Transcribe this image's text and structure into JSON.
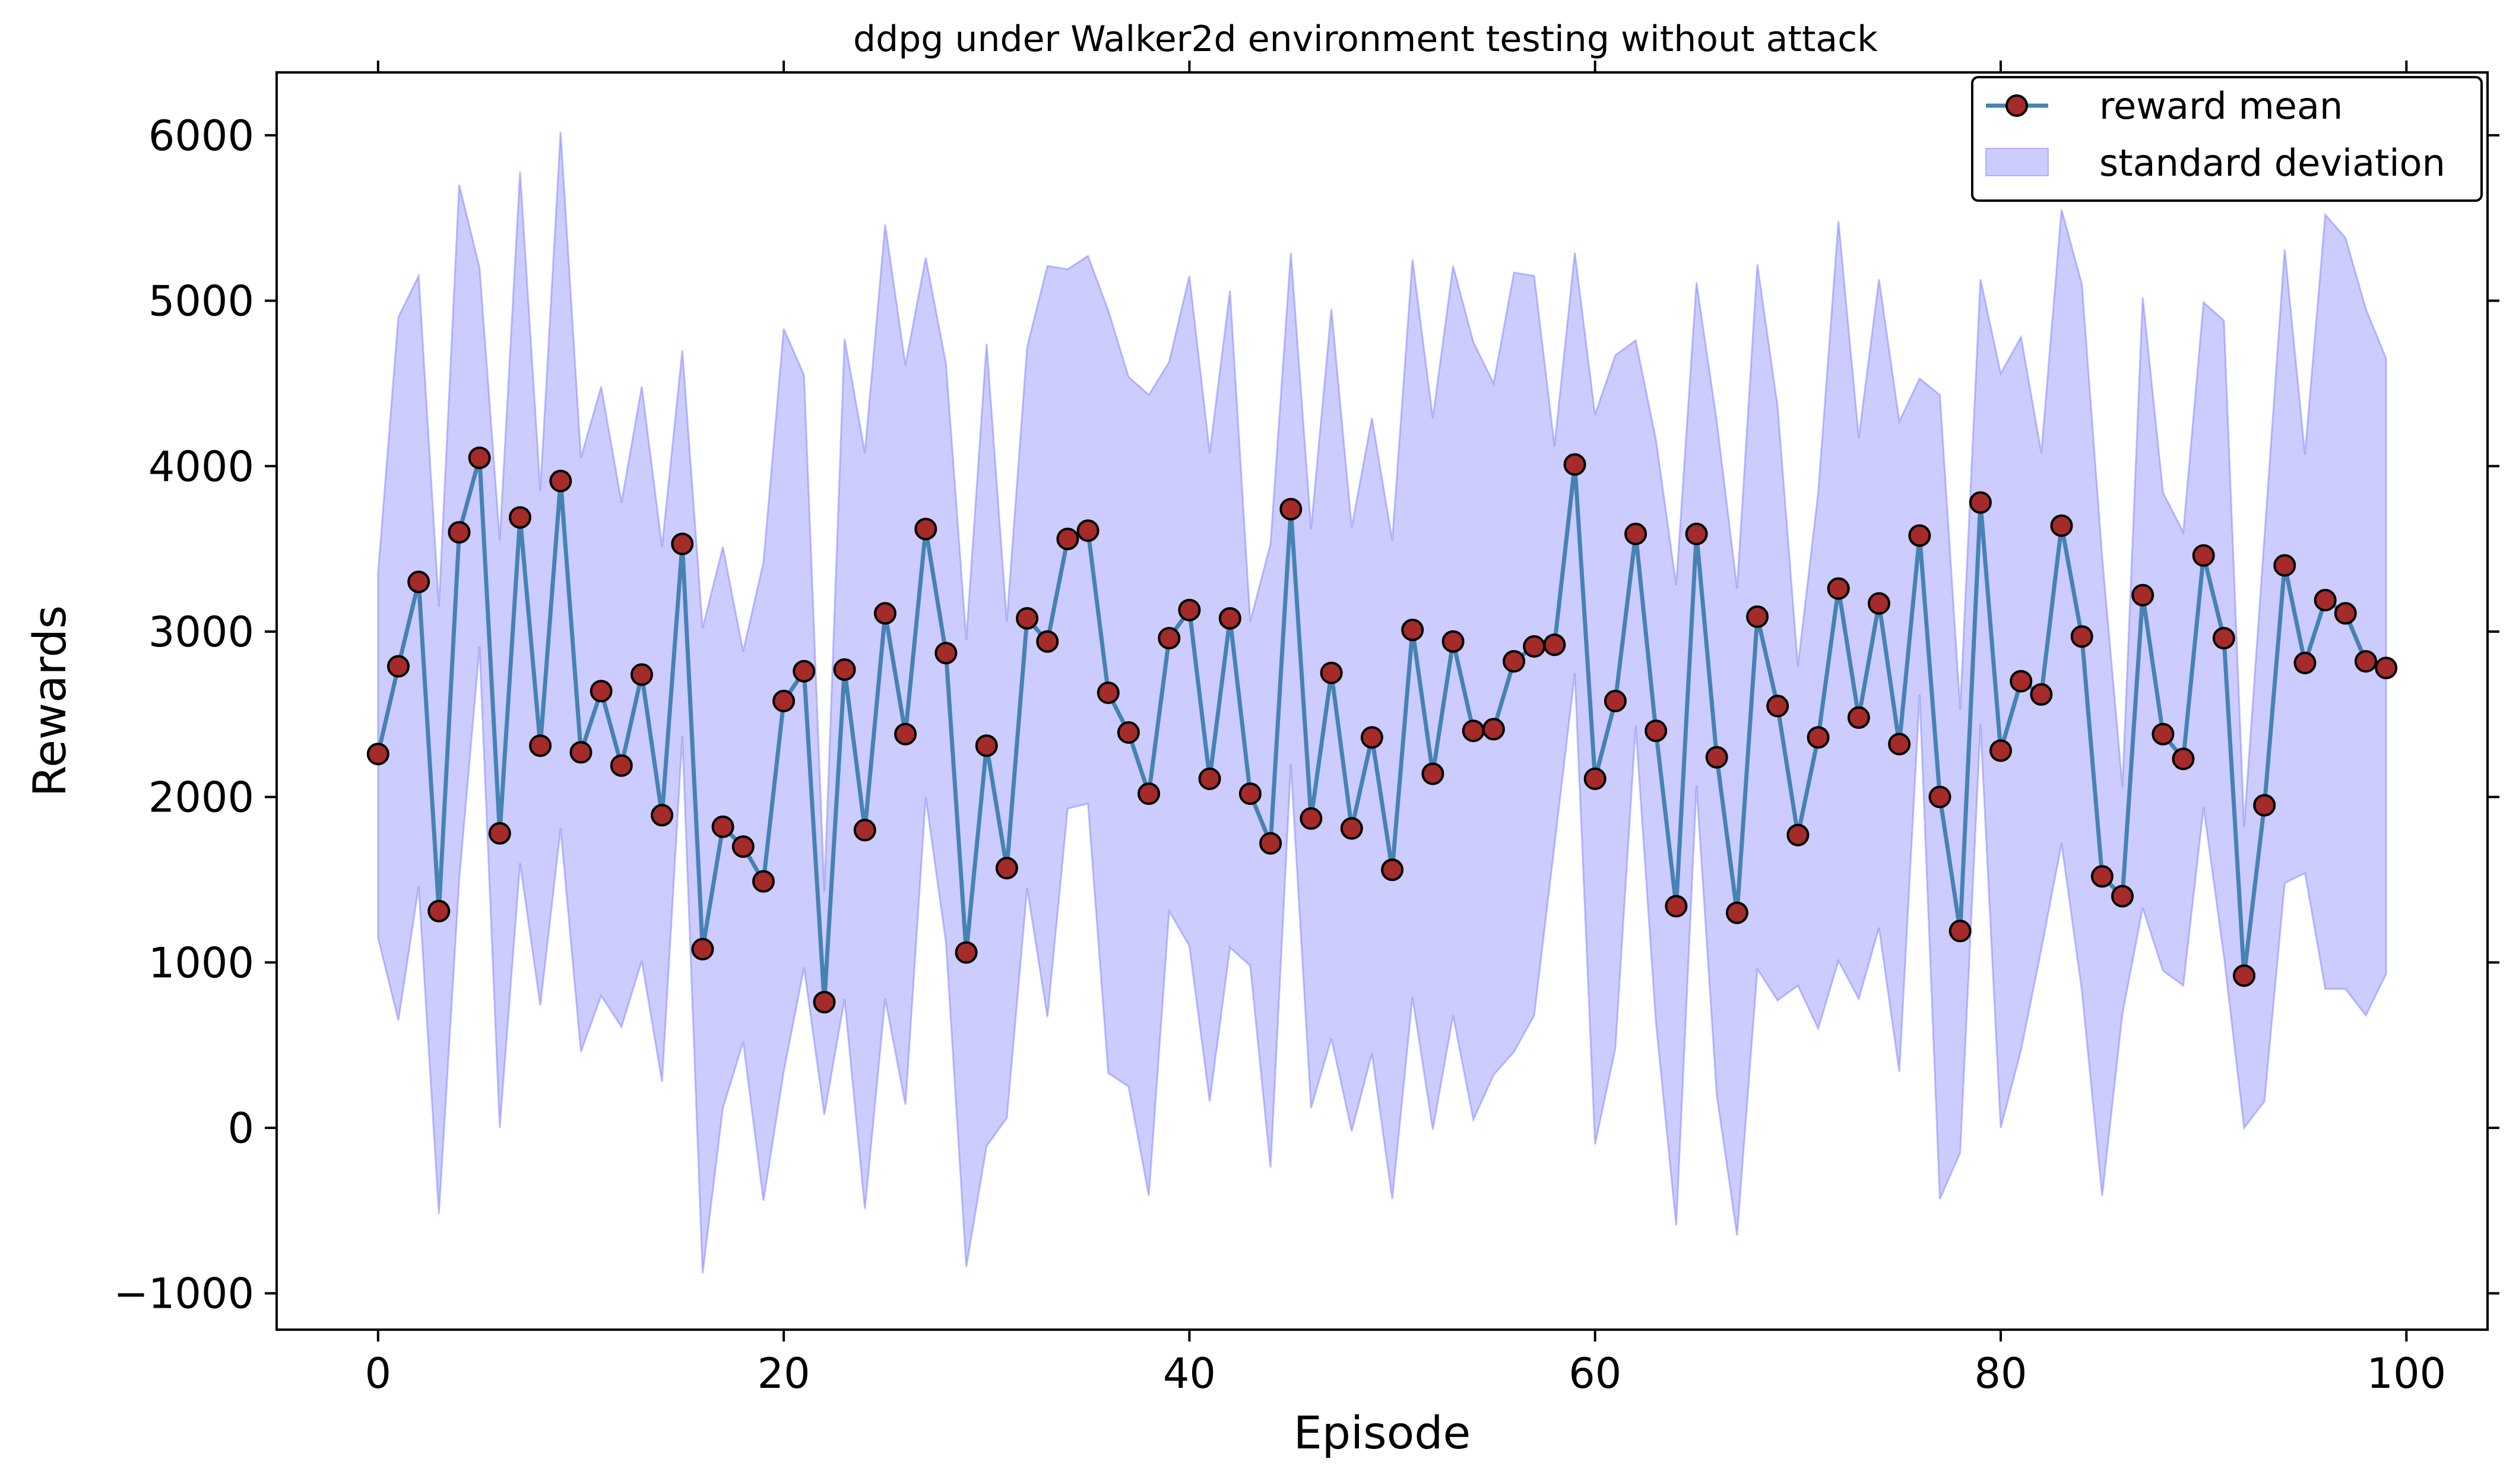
{
  "chart_data": {
    "type": "line",
    "title": "ddpg under Walker2d environment testing without attack",
    "xlabel": "Episode",
    "ylabel": "Rewards",
    "xlim": [
      -5,
      104
    ],
    "ylim": [
      -1220,
      6380
    ],
    "xticks": [
      0,
      20,
      40,
      60,
      80,
      100
    ],
    "yticks": [
      -1000,
      0,
      1000,
      2000,
      3000,
      4000,
      5000,
      6000
    ],
    "ytick_labels": [
      "−1000",
      "0",
      "1000",
      "2000",
      "3000",
      "4000",
      "5000",
      "6000"
    ],
    "grid": false,
    "legend_position": "top-right",
    "legend": [
      {
        "label": "reward mean",
        "kind": "line-marker"
      },
      {
        "label": "standard deviation",
        "kind": "patch"
      }
    ],
    "colors": {
      "line": "#4682b4",
      "marker_face": "#a52a2a",
      "marker_edge": "#000000",
      "band": "#8080ff"
    },
    "series": [
      {
        "name": "reward mean",
        "x": [
          0,
          1,
          2,
          3,
          4,
          5,
          6,
          7,
          8,
          9,
          10,
          11,
          12,
          13,
          14,
          15,
          16,
          17,
          18,
          19,
          20,
          21,
          22,
          23,
          24,
          25,
          26,
          27,
          28,
          29,
          30,
          31,
          32,
          33,
          34,
          35,
          36,
          37,
          38,
          39,
          40,
          41,
          42,
          43,
          44,
          45,
          46,
          47,
          48,
          49,
          50,
          51,
          52,
          53,
          54,
          55,
          56,
          57,
          58,
          59,
          60,
          61,
          62,
          63,
          64,
          65,
          66,
          67,
          68,
          69,
          70,
          71,
          72,
          73,
          74,
          75,
          76,
          77,
          78,
          79,
          80,
          81,
          82,
          83,
          84,
          85,
          86,
          87,
          88,
          89,
          90,
          91,
          92,
          93,
          94,
          95,
          96,
          97,
          98,
          99
        ],
        "values": [
          2260,
          2790,
          3300,
          1310,
          3600,
          4050,
          1780,
          3690,
          2310,
          3910,
          2270,
          2640,
          2190,
          2740,
          1890,
          3530,
          1080,
          1820,
          1700,
          1490,
          2580,
          2760,
          760,
          2770,
          1800,
          3110,
          2380,
          3620,
          2870,
          1060,
          2310,
          1570,
          3080,
          2940,
          3560,
          3610,
          2630,
          2390,
          2020,
          2960,
          3130,
          2110,
          3080,
          2020,
          1720,
          3740,
          1870,
          2750,
          1810,
          2360,
          1560,
          3010,
          2140,
          2940,
          2400,
          2410,
          2820,
          2910,
          2920,
          4010,
          2110,
          2580,
          3590,
          2400,
          1340,
          3590,
          2240,
          1300,
          3090,
          2550,
          1770,
          2360,
          3260,
          2480,
          3170,
          2320,
          3580,
          2000,
          1190,
          3780,
          2280,
          2700,
          2620,
          3640,
          2970,
          1520,
          1400,
          3220,
          2380,
          2230,
          3460,
          2960,
          920,
          1950,
          3400,
          2810,
          3190,
          3110,
          2820,
          2780
        ]
      },
      {
        "name": "standard deviation",
        "x": [
          0,
          1,
          2,
          3,
          4,
          5,
          6,
          7,
          8,
          9,
          10,
          11,
          12,
          13,
          14,
          15,
          16,
          17,
          18,
          19,
          20,
          21,
          22,
          23,
          24,
          25,
          26,
          27,
          28,
          29,
          30,
          31,
          32,
          33,
          34,
          35,
          36,
          37,
          38,
          39,
          40,
          41,
          42,
          43,
          44,
          45,
          46,
          47,
          48,
          49,
          50,
          51,
          52,
          53,
          54,
          55,
          56,
          57,
          58,
          59,
          60,
          61,
          62,
          63,
          64,
          65,
          66,
          67,
          68,
          69,
          70,
          71,
          72,
          73,
          74,
          75,
          76,
          77,
          78,
          79,
          80,
          81,
          82,
          83,
          84,
          85,
          86,
          87,
          88,
          89,
          90,
          91,
          92,
          93,
          94,
          95,
          96,
          97,
          98,
          99
        ],
        "upper": [
          3350,
          4900,
          5150,
          3150,
          5700,
          5200,
          3550,
          5780,
          3850,
          6020,
          4050,
          4480,
          3780,
          4480,
          3510,
          4700,
          3020,
          3510,
          2880,
          3420,
          4830,
          4550,
          1430,
          4770,
          4080,
          5460,
          4610,
          5260,
          4620,
          2950,
          4740,
          3060,
          4720,
          5210,
          5190,
          5270,
          4940,
          4540,
          4430,
          4630,
          5150,
          4080,
          5060,
          3060,
          3530,
          5290,
          3620,
          4950,
          3630,
          4290,
          3550,
          5250,
          4290,
          5210,
          4750,
          4500,
          5170,
          5150,
          4120,
          5290,
          4310,
          4670,
          4760,
          4160,
          3280,
          5110,
          4270,
          3260,
          5220,
          4360,
          2790,
          3840,
          5480,
          4170,
          5130,
          4270,
          4530,
          4430,
          2530,
          5130,
          4560,
          4780,
          4080,
          5550,
          5100,
          3450,
          2060,
          5020,
          3840,
          3600,
          4990,
          4880,
          1820,
          3570,
          5310,
          4070,
          5520,
          5380,
          4950,
          4650
        ],
        "lower": [
          1150,
          650,
          1460,
          -520,
          1500,
          2910,
          0,
          1600,
          740,
          1810,
          460,
          800,
          610,
          1010,
          280,
          2370,
          -880,
          120,
          520,
          -440,
          340,
          970,
          80,
          780,
          -490,
          780,
          140,
          2000,
          1120,
          -840,
          -110,
          60,
          1450,
          670,
          1930,
          1960,
          330,
          250,
          -410,
          1310,
          1100,
          160,
          1090,
          980,
          -240,
          2200,
          120,
          540,
          -20,
          450,
          -430,
          790,
          -10,
          680,
          50,
          320,
          460,
          680,
          1710,
          2750,
          -100,
          480,
          2430,
          640,
          -590,
          2070,
          200,
          -650,
          960,
          770,
          860,
          600,
          1010,
          780,
          1210,
          340,
          2620,
          -430,
          -150,
          2440,
          0,
          470,
          1080,
          1720,
          830,
          -410,
          690,
          1330,
          950,
          860,
          1940,
          1040,
          0,
          160,
          1480,
          1540,
          840,
          840,
          680,
          930
        ]
      }
    ]
  }
}
